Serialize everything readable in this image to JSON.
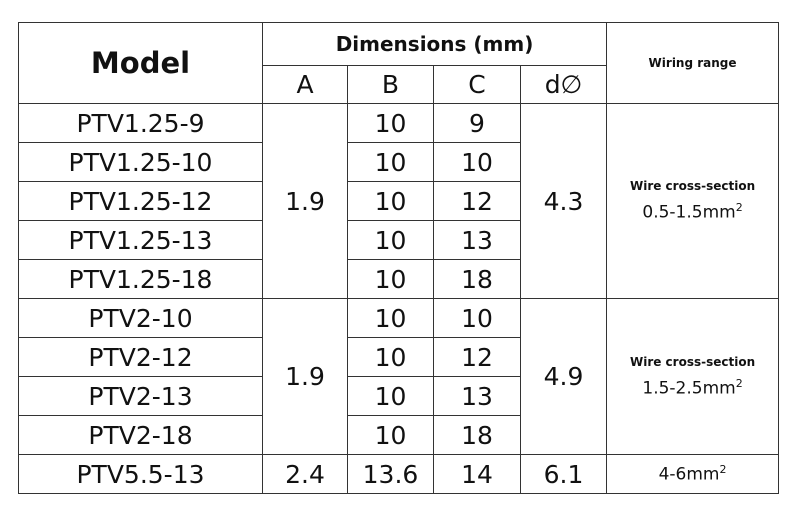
{
  "table": {
    "header": {
      "model": "Model",
      "dimensions": "Dimensions (mm)",
      "wiring": "Wiring range",
      "columns": [
        "A",
        "B",
        "C",
        "d∅"
      ]
    },
    "groups": [
      {
        "a": "1.9",
        "d": "4.3",
        "wiring_label": "Wire cross-section",
        "wiring_value": "0.5-1.5mm",
        "wiring_sup": "2",
        "rows": [
          {
            "model": "PTV1.25-9",
            "b": "10",
            "c": "9"
          },
          {
            "model": "PTV1.25-10",
            "b": "10",
            "c": "10"
          },
          {
            "model": "PTV1.25-12",
            "b": "10",
            "c": "12"
          },
          {
            "model": "PTV1.25-13",
            "b": "10",
            "c": "13"
          },
          {
            "model": "PTV1.25-18",
            "b": "10",
            "c": "18"
          }
        ]
      },
      {
        "a": "1.9",
        "d": "4.9",
        "wiring_label": "Wire cross-section",
        "wiring_value": "1.5-2.5mm",
        "wiring_sup": "2",
        "rows": [
          {
            "model": "PTV2-10",
            "b": "10",
            "c": "10"
          },
          {
            "model": "PTV2-12",
            "b": "10",
            "c": "12"
          },
          {
            "model": "PTV2-13",
            "b": "10",
            "c": "13"
          },
          {
            "model": "PTV2-18",
            "b": "10",
            "c": "18"
          }
        ]
      },
      {
        "a": "2.4",
        "d": "6.1",
        "wiring_value": "4-6mm",
        "wiring_sup": "2",
        "rows": [
          {
            "model": "PTV5.5-13",
            "b": "13.6",
            "c": "14"
          }
        ]
      }
    ]
  }
}
